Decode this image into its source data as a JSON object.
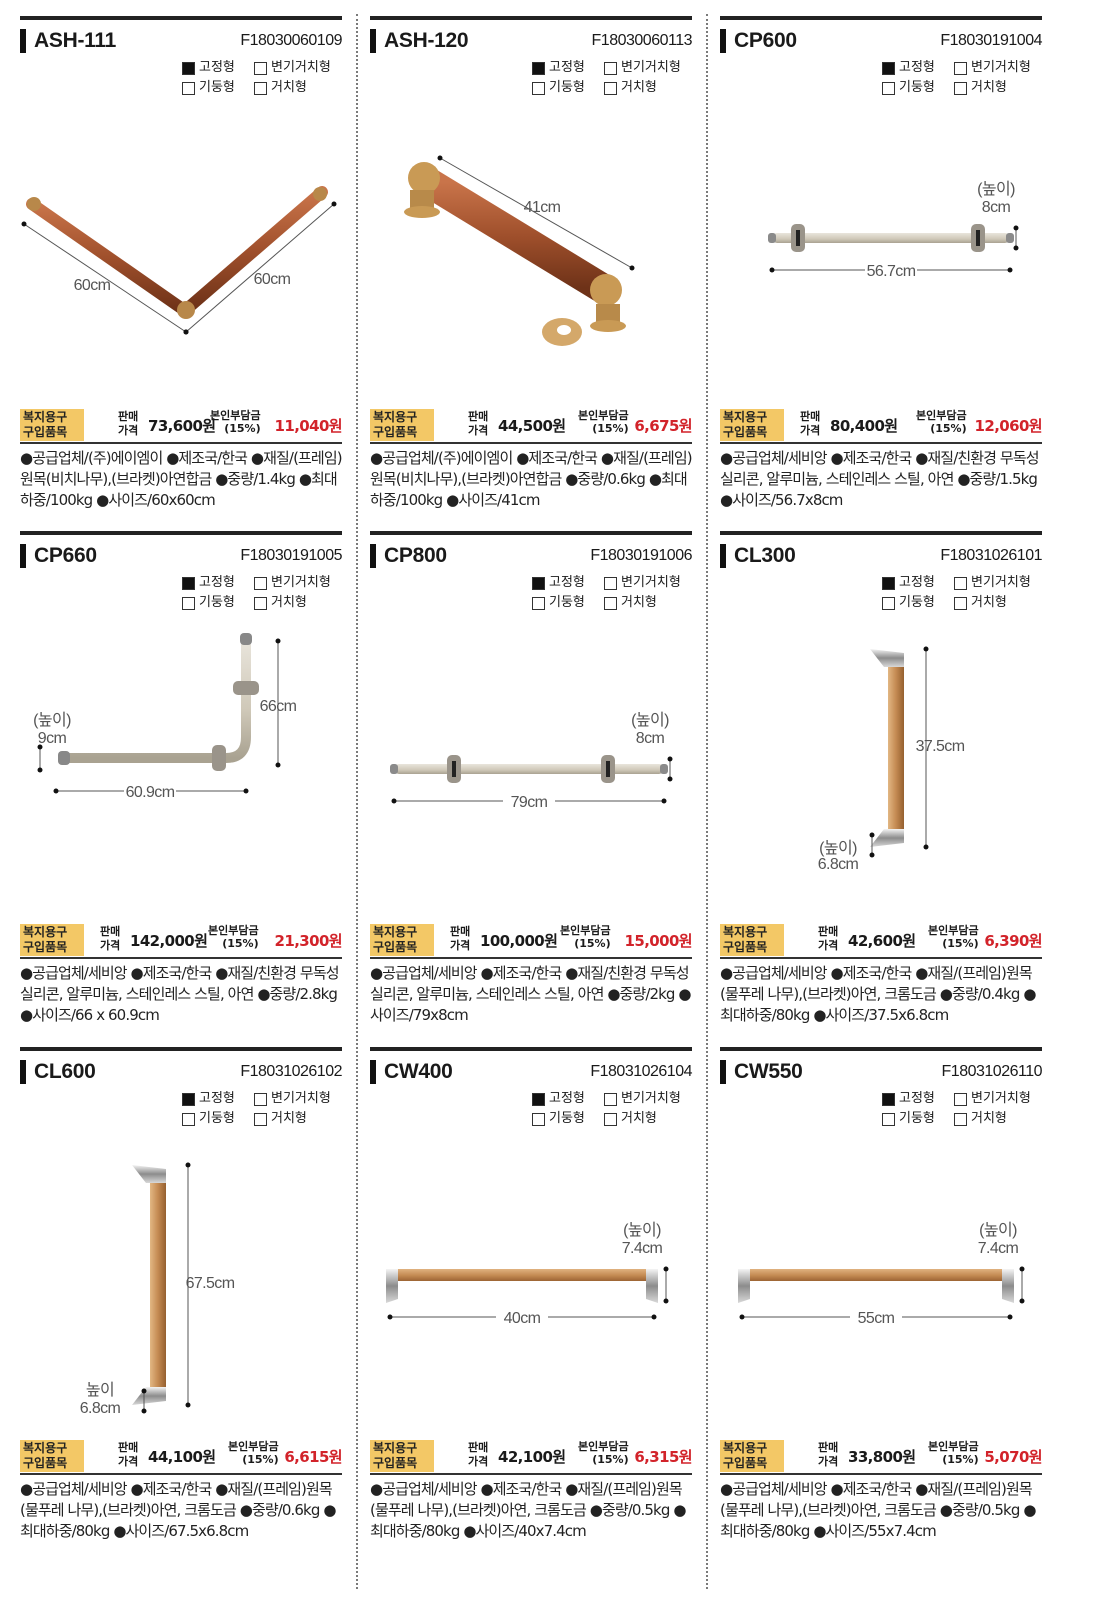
{
  "common": {
    "badge": "복지용구\n구입품목",
    "price_label": "판매\n가격",
    "share_label": "본인부담금\n(15%)",
    "type_labels": [
      "고정형",
      "변기거치형",
      "기둥형",
      "거치형"
    ]
  },
  "products": [
    {
      "model": "ASH-111",
      "code": "F18030060109",
      "types_checked": [
        true,
        false,
        false,
        false
      ],
      "price": "73,600원",
      "share": "11,040원",
      "desc": "●공급업체/(주)에이엠이 ●제조국/한국 ●재질/(프레임)원목(비치나무),(브라켓)아연합금 ●중량/1.4kg ●최대하중/100kg ●사이즈/60x60cm",
      "dims": [
        "60cm",
        "60cm"
      ]
    },
    {
      "model": "ASH-120",
      "code": "F18030060113",
      "types_checked": [
        true,
        false,
        false,
        false
      ],
      "price": "44,500원",
      "share": "6,675원",
      "desc": "●공급업체/(주)에이엠이 ●제조국/한국 ●재질/(프레임)원목(비치나무),(브라켓)아연합금 ●중량/0.6kg ●최대하중/100kg ●사이즈/41cm",
      "dims": [
        "41cm"
      ]
    },
    {
      "model": "CP600",
      "code": "F18030191004",
      "types_checked": [
        true,
        false,
        false,
        false
      ],
      "price": "80,400원",
      "share": "12,060원",
      "desc": "●공급업체/세비앙 ●제조국/한국 ●재질/친환경 무독성 실리콘, 알루미늄, 스테인레스 스틸, 아연 ●중량/1.5kg ●사이즈/56.7x8cm",
      "dims": [
        "(높이)",
        "8cm",
        "56.7cm"
      ]
    },
    {
      "model": "CP660",
      "code": "F18030191005",
      "types_checked": [
        true,
        false,
        false,
        false
      ],
      "price": "142,000원",
      "share": "21,300원",
      "desc": "●공급업체/세비앙 ●제조국/한국 ●재질/친환경 무독성 실리콘, 알루미늄, 스테인레스 스틸, 아연 ●중량/2.8kg ●사이즈/66 x 60.9cm",
      "dims": [
        "66cm",
        "(높이)",
        "9cm",
        "60.9cm"
      ]
    },
    {
      "model": "CP800",
      "code": "F18030191006",
      "types_checked": [
        true,
        false,
        false,
        false
      ],
      "price": "100,000원",
      "share": "15,000원",
      "desc": "●공급업체/세비앙 ●제조국/한국 ●재질/친환경 무독성 실리콘, 알루미늄, 스테인레스 스틸, 아연 ●중량/2kg ●사이즈/79x8cm",
      "dims": [
        "(높이)",
        "8cm",
        "79cm"
      ]
    },
    {
      "model": "CL300",
      "code": "F18031026101",
      "types_checked": [
        true,
        false,
        false,
        false
      ],
      "price": "42,600원",
      "share": "6,390원",
      "desc": "●공급업체/세비앙 ●제조국/한국 ●재질/(프레임)원목(물푸레 나무),(브라켓)아연, 크롬도금 ●중량/0.4kg ●최대하중/80kg ●사이즈/37.5x6.8cm",
      "dims": [
        "37.5cm",
        "(높이)",
        "6.8cm"
      ]
    },
    {
      "model": "CL600",
      "code": "F18031026102",
      "types_checked": [
        true,
        false,
        false,
        false
      ],
      "price": "44,100원",
      "share": "6,615원",
      "desc": "●공급업체/세비앙 ●제조국/한국 ●재질/(프레임)원목(물푸레 나무),(브라켓)아연, 크롬도금 ●중량/0.6kg ●최대하중/80kg ●사이즈/67.5x6.8cm",
      "dims": [
        "67.5cm",
        "높이",
        "6.8cm"
      ]
    },
    {
      "model": "CW400",
      "code": "F18031026104",
      "types_checked": [
        true,
        false,
        false,
        false
      ],
      "price": "42,100원",
      "share": "6,315원",
      "desc": "●공급업체/세비앙 ●제조국/한국 ●재질/(프레임)원목(물푸레 나무),(브라켓)아연, 크롬도금 ●중량/0.5kg ●최대하중/80kg ●사이즈/40x7.4cm",
      "dims": [
        "(높이)",
        "7.4cm",
        "40cm"
      ]
    },
    {
      "model": "CW550",
      "code": "F18031026110",
      "types_checked": [
        true,
        false,
        false,
        false
      ],
      "price": "33,800원",
      "share": "5,070원",
      "desc": "●공급업체/세비앙 ●제조국/한국 ●재질/(프레임)원목(물푸레 나무),(브라켓)아연, 크롬도금 ●중량/0.5kg ●최대하중/80kg ●사이즈/55x7.4cm",
      "dims": [
        "(높이)",
        "7.4cm",
        "55cm"
      ]
    }
  ]
}
